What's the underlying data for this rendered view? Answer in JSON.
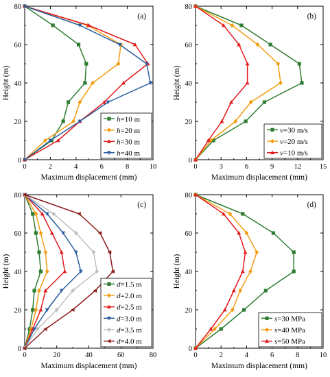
{
  "chart_data": [
    {
      "type": "line",
      "tag": "(a)",
      "xlabel": "Maximum displacement (mm)",
      "ylabel": "Height (m)",
      "xlim": [
        0,
        10
      ],
      "ylim": [
        0,
        80
      ],
      "xticks": [
        0,
        2,
        4,
        6,
        8,
        10
      ],
      "yticks": [
        0,
        20,
        40,
        60,
        80
      ],
      "legend_position": "bottom-right",
      "y": [
        0,
        10,
        20,
        30,
        40,
        50,
        60,
        70,
        80
      ],
      "series": [
        {
          "name": "h=10 m",
          "var": "h",
          "rest": "=10 m",
          "color": "#2e7d32",
          "marker": "square",
          "x": [
            0,
            2.1,
            3.0,
            3.4,
            4.7,
            4.8,
            4.2,
            2.2,
            0
          ]
        },
        {
          "name": "h=20 m",
          "var": "h",
          "rest": "=20 m",
          "color": "#f39c12",
          "marker": "diamond",
          "x": [
            0,
            1.6,
            3.8,
            4.3,
            5.3,
            7.3,
            7.5,
            4.9,
            0
          ]
        },
        {
          "name": "h=30 m",
          "var": "h",
          "rest": "=30 m",
          "color": "#e31a1c",
          "marker": "triangle-up",
          "x": [
            0,
            2.6,
            4.3,
            6.2,
            7.7,
            9.6,
            8.6,
            5.0,
            0
          ]
        },
        {
          "name": "h=40 m",
          "var": "h",
          "rest": "=40 m",
          "color": "#2b5d9e",
          "marker": "triangle-down",
          "x": [
            0,
            2.0,
            4.3,
            6.5,
            9.8,
            9.5,
            7.4,
            4.3,
            0
          ]
        }
      ]
    },
    {
      "type": "line",
      "tag": "(b)",
      "xlabel": "Maximum displacement (mm)",
      "ylabel": "Height (m)",
      "xlim": [
        0,
        15
      ],
      "ylim": [
        0,
        80
      ],
      "xticks": [
        0,
        3,
        6,
        9,
        12,
        15
      ],
      "yticks": [
        0,
        20,
        40,
        60,
        80
      ],
      "legend_position": "bottom-right",
      "y": [
        0,
        10,
        20,
        30,
        40,
        50,
        60,
        70,
        80
      ],
      "series": [
        {
          "name": "v=30 m/s",
          "var": "v",
          "rest": "=30 m/s",
          "color": "#2e7d32",
          "marker": "square",
          "x": [
            0,
            2.1,
            5.9,
            8.1,
            12.5,
            12.2,
            8.8,
            5.4,
            0
          ]
        },
        {
          "name": "v=20 m/s",
          "var": "v",
          "rest": "=20 m/s",
          "color": "#f39c12",
          "marker": "diamond",
          "x": [
            0,
            1.8,
            4.7,
            6.5,
            10.0,
            9.7,
            7.3,
            4.3,
            0
          ]
        },
        {
          "name": "v=10 m/s",
          "var": "v",
          "rest": "=10 m/s",
          "color": "#e31a1c",
          "marker": "triangle-up",
          "x": [
            0,
            1.5,
            3.1,
            4.2,
            6.1,
            6.1,
            5.1,
            3.3,
            0
          ]
        }
      ]
    },
    {
      "type": "line",
      "tag": "(c)",
      "xlabel": "Maximum displacement (mm)",
      "ylabel": "Height (m)",
      "xlim": [
        0,
        80
      ],
      "ylim": [
        0,
        80
      ],
      "xticks": [
        0,
        20,
        40,
        60,
        80
      ],
      "yticks": [
        0,
        20,
        40,
        60,
        80
      ],
      "legend_position": "bottom-right",
      "y": [
        0,
        10,
        20,
        30,
        40,
        50,
        60,
        70,
        80
      ],
      "series": [
        {
          "name": "d=1.5 m",
          "var": "d",
          "rest": "=1.5 m",
          "color": "#2e7d32",
          "marker": "square",
          "x": [
            0,
            3,
            5,
            6,
            10,
            9,
            7,
            5,
            0
          ]
        },
        {
          "name": "d=2.0 m",
          "var": "d",
          "rest": "=2.0 m",
          "color": "#f39c12",
          "marker": "diamond",
          "x": [
            0,
            4,
            7,
            9,
            14,
            13,
            10,
            7,
            0
          ]
        },
        {
          "name": "d=2.5 m",
          "var": "d",
          "rest": "=2.5 m",
          "color": "#e31a1c",
          "marker": "triangle-up",
          "x": [
            0,
            5,
            10,
            13,
            25,
            23,
            17,
            11,
            0
          ]
        },
        {
          "name": "d=3.0 m",
          "var": "d",
          "rest": "=3.0 m",
          "color": "#2b5d9e",
          "marker": "triangle-down",
          "x": [
            0,
            6,
            14,
            23,
            35,
            32,
            24,
            14,
            0
          ]
        },
        {
          "name": "d=3.5 m",
          "var": "d",
          "rest": "=3.5 m",
          "color": "#c0c0c0",
          "marker": "diamond",
          "x": [
            0,
            8,
            20,
            30,
            45,
            43,
            32,
            18,
            0
          ]
        },
        {
          "name": "d=4.0 m",
          "var": "d",
          "rest": "=4.0 m",
          "color": "#8b1a1a",
          "marker": "triangle-left",
          "x": [
            0,
            13,
            30,
            44,
            55,
            53,
            47,
            34,
            0
          ]
        }
      ]
    },
    {
      "type": "line",
      "tag": "(d)",
      "xlabel": "Maximum displacement (mm)",
      "ylabel": "Height (m)",
      "xlim": [
        0,
        10
      ],
      "ylim": [
        0,
        80
      ],
      "xticks": [
        0,
        2,
        4,
        6,
        8,
        10
      ],
      "yticks": [
        0,
        20,
        40,
        60,
        80
      ],
      "legend_position": "bottom-right",
      "y": [
        0,
        10,
        20,
        30,
        40,
        50,
        60,
        70,
        80
      ],
      "series": [
        {
          "name": "s=30 MPa",
          "var": "s",
          "rest": "=30 MPa",
          "color": "#2e7d32",
          "marker": "square",
          "x": [
            0,
            2.0,
            3.8,
            5.5,
            7.7,
            7.7,
            6.1,
            3.7,
            0
          ]
        },
        {
          "name": "s=40 MPa",
          "var": "s",
          "rest": "=40 MPa",
          "color": "#f39c12",
          "marker": "diamond",
          "x": [
            0,
            1.5,
            2.9,
            3.5,
            4.3,
            4.8,
            4.0,
            2.7,
            0
          ]
        },
        {
          "name": "s=50 MPa",
          "var": "s",
          "rest": "=50 MPa",
          "color": "#e31a1c",
          "marker": "triangle-up",
          "x": [
            0,
            1.2,
            2.3,
            3.0,
            3.7,
            3.9,
            3.4,
            2.2,
            0
          ]
        }
      ]
    }
  ]
}
